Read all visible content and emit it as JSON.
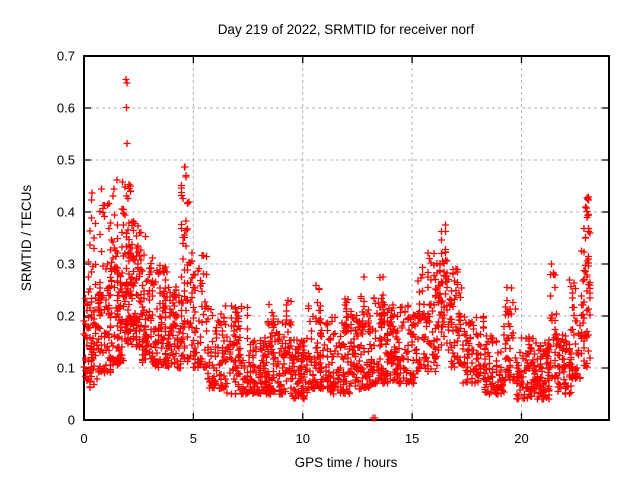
{
  "chart_data": {
    "type": "scatter",
    "title": "Day 219 of 2022, SRMTID for receiver norf",
    "xlabel": "GPS time / hours",
    "ylabel": "SRMTID / TECUs",
    "xlim": [
      0,
      24
    ],
    "ylim": [
      0,
      0.7
    ],
    "xticks": [
      0,
      5,
      10,
      15,
      20
    ],
    "xtick_labels": [
      "0",
      "5",
      "10",
      "15",
      "20"
    ],
    "yticks": [
      0,
      0.1,
      0.2,
      0.3,
      0.4,
      0.5,
      0.6,
      0.7
    ],
    "ytick_labels": [
      "0",
      "0.1",
      "0.2",
      "0.3",
      "0.4",
      "0.5",
      "0.6",
      "0.7"
    ],
    "grid": true,
    "legend": "none",
    "marker": {
      "style": "plus",
      "size": 7
    },
    "series_name": "SRMTID",
    "data_extent_hours": [
      0,
      23.15
    ],
    "notable_points": [
      [
        1.93,
        0.655
      ],
      [
        1.96,
        0.648
      ],
      [
        1.95,
        0.601
      ],
      [
        1.97,
        0.532
      ],
      [
        0.37,
        0.437
      ],
      [
        1.38,
        0.444
      ],
      [
        1.5,
        0.462
      ],
      [
        1.75,
        0.458
      ],
      [
        4.62,
        0.487
      ],
      [
        4.66,
        0.47
      ],
      [
        13.22,
        0.004
      ],
      [
        13.3,
        0.004
      ],
      [
        21.37,
        0.3
      ],
      [
        23.02,
        0.425
      ],
      [
        22.98,
        0.408
      ],
      [
        23.05,
        0.393
      ]
    ],
    "density_bands": [
      {
        "x0": 0.0,
        "x1": 0.6,
        "yLo": 0.06,
        "yHi": 0.23,
        "n": 70,
        "expo": 1.1
      },
      {
        "x0": 0.05,
        "x1": 0.6,
        "yLo": 0.23,
        "yHi": 0.33,
        "n": 12,
        "expo": 1.3
      },
      {
        "x0": 0.25,
        "x1": 0.55,
        "yLo": 0.33,
        "yHi": 0.44,
        "n": 6,
        "expo": 1.0
      },
      {
        "x0": 0.6,
        "x1": 1.2,
        "yLo": 0.09,
        "yHi": 0.26,
        "n": 80,
        "expo": 1.3
      },
      {
        "x0": 0.6,
        "x1": 1.2,
        "yLo": 0.26,
        "yHi": 0.42,
        "n": 14,
        "expo": 1.3
      },
      {
        "x0": 0.8,
        "x1": 0.95,
        "yLo": 0.4,
        "yHi": 0.445,
        "n": 3,
        "expo": 1.0
      },
      {
        "x0": 1.2,
        "x1": 1.8,
        "yLo": 0.1,
        "yHi": 0.3,
        "n": 85,
        "expo": 1.2
      },
      {
        "x0": 1.2,
        "x1": 1.8,
        "yLo": 0.3,
        "yHi": 0.44,
        "n": 16,
        "expo": 1.3
      },
      {
        "x0": 1.8,
        "x1": 2.15,
        "yLo": 0.14,
        "yHi": 0.34,
        "n": 55,
        "expo": 1.0
      },
      {
        "x0": 1.8,
        "x1": 2.15,
        "yLo": 0.34,
        "yHi": 0.455,
        "n": 18,
        "expo": 1.1
      },
      {
        "x0": 2.15,
        "x1": 2.6,
        "yLo": 0.14,
        "yHi": 0.32,
        "n": 60,
        "expo": 1.1
      },
      {
        "x0": 2.15,
        "x1": 2.6,
        "yLo": 0.32,
        "yHi": 0.385,
        "n": 14,
        "expo": 1.0
      },
      {
        "x0": 2.6,
        "x1": 3.2,
        "yLo": 0.11,
        "yHi": 0.3,
        "n": 75,
        "expo": 1.4
      },
      {
        "x0": 2.6,
        "x1": 3.2,
        "yLo": 0.3,
        "yHi": 0.36,
        "n": 6,
        "expo": 1.2
      },
      {
        "x0": 3.2,
        "x1": 3.8,
        "yLo": 0.1,
        "yHi": 0.3,
        "n": 75,
        "expo": 1.3
      },
      {
        "x0": 3.8,
        "x1": 4.4,
        "yLo": 0.1,
        "yHi": 0.26,
        "n": 70,
        "expo": 1.5
      },
      {
        "x0": 4.4,
        "x1": 5.1,
        "yLo": 0.11,
        "yHi": 0.33,
        "n": 65,
        "expo": 1.2
      },
      {
        "x0": 4.45,
        "x1": 4.8,
        "yLo": 0.33,
        "yHi": 0.49,
        "n": 20,
        "expo": 1.2
      },
      {
        "x0": 5.0,
        "x1": 5.6,
        "yLo": 0.1,
        "yHi": 0.35,
        "n": 45,
        "expo": 1.7
      },
      {
        "x0": 5.6,
        "x1": 6.5,
        "yLo": 0.06,
        "yHi": 0.22,
        "n": 85,
        "expo": 1.5
      },
      {
        "x0": 6.5,
        "x1": 7.5,
        "yLo": 0.05,
        "yHi": 0.22,
        "n": 90,
        "expo": 1.6
      },
      {
        "x0": 6.9,
        "x1": 7.15,
        "yLo": 0.18,
        "yHi": 0.27,
        "n": 8,
        "expo": 1.2
      },
      {
        "x0": 7.5,
        "x1": 8.5,
        "yLo": 0.05,
        "yHi": 0.16,
        "n": 100,
        "expo": 1.4
      },
      {
        "x0": 8.35,
        "x1": 8.65,
        "yLo": 0.13,
        "yHi": 0.26,
        "n": 12,
        "expo": 1.4
      },
      {
        "x0": 8.5,
        "x1": 9.5,
        "yLo": 0.05,
        "yHi": 0.2,
        "n": 95,
        "expo": 1.5
      },
      {
        "x0": 9.2,
        "x1": 9.5,
        "yLo": 0.15,
        "yHi": 0.235,
        "n": 8,
        "expo": 1.2
      },
      {
        "x0": 9.5,
        "x1": 10.2,
        "yLo": 0.04,
        "yHi": 0.16,
        "n": 80,
        "expo": 1.4
      },
      {
        "x0": 10.2,
        "x1": 11.2,
        "yLo": 0.06,
        "yHi": 0.22,
        "n": 100,
        "expo": 1.6
      },
      {
        "x0": 10.5,
        "x1": 10.9,
        "yLo": 0.17,
        "yHi": 0.265,
        "n": 10,
        "expo": 1.3
      },
      {
        "x0": 11.2,
        "x1": 12.2,
        "yLo": 0.05,
        "yHi": 0.2,
        "n": 100,
        "expo": 1.5
      },
      {
        "x0": 11.9,
        "x1": 12.2,
        "yLo": 0.16,
        "yHi": 0.28,
        "n": 10,
        "expo": 1.3
      },
      {
        "x0": 12.2,
        "x1": 13.2,
        "yLo": 0.06,
        "yHi": 0.22,
        "n": 100,
        "expo": 1.5
      },
      {
        "x0": 12.5,
        "x1": 12.8,
        "yLo": 0.17,
        "yHi": 0.285,
        "n": 9,
        "expo": 1.3
      },
      {
        "x0": 13.2,
        "x1": 14.2,
        "yLo": 0.07,
        "yHi": 0.24,
        "n": 100,
        "expo": 1.5
      },
      {
        "x0": 13.5,
        "x1": 13.78,
        "yLo": 0.18,
        "yHi": 0.28,
        "n": 8,
        "expo": 1.2
      },
      {
        "x0": 13.95,
        "x1": 14.18,
        "yLo": 0.17,
        "yHi": 0.26,
        "n": 7,
        "expo": 1.2
      },
      {
        "x0": 14.2,
        "x1": 15.2,
        "yLo": 0.07,
        "yHi": 0.22,
        "n": 95,
        "expo": 1.5
      },
      {
        "x0": 15.2,
        "x1": 16.2,
        "yLo": 0.09,
        "yHi": 0.28,
        "n": 90,
        "expo": 1.3
      },
      {
        "x0": 15.4,
        "x1": 16.2,
        "yLo": 0.28,
        "yHi": 0.325,
        "n": 10,
        "expo": 1.2
      },
      {
        "x0": 16.2,
        "x1": 16.7,
        "yLo": 0.13,
        "yHi": 0.3,
        "n": 45,
        "expo": 1.0
      },
      {
        "x0": 16.3,
        "x1": 16.6,
        "yLo": 0.3,
        "yHi": 0.375,
        "n": 14,
        "expo": 1.2
      },
      {
        "x0": 16.7,
        "x1": 17.3,
        "yLo": 0.1,
        "yHi": 0.28,
        "n": 55,
        "expo": 1.3
      },
      {
        "x0": 16.8,
        "x1": 17.15,
        "yLo": 0.28,
        "yHi": 0.315,
        "n": 6,
        "expo": 1.2
      },
      {
        "x0": 17.3,
        "x1": 18.3,
        "yLo": 0.07,
        "yHi": 0.2,
        "n": 85,
        "expo": 1.5
      },
      {
        "x0": 18.3,
        "x1": 19.2,
        "yLo": 0.05,
        "yHi": 0.17,
        "n": 80,
        "expo": 1.4
      },
      {
        "x0": 19.2,
        "x1": 19.8,
        "yLo": 0.07,
        "yHi": 0.22,
        "n": 45,
        "expo": 1.4
      },
      {
        "x0": 19.3,
        "x1": 19.6,
        "yLo": 0.2,
        "yHi": 0.27,
        "n": 9,
        "expo": 1.2
      },
      {
        "x0": 19.8,
        "x1": 20.7,
        "yLo": 0.04,
        "yHi": 0.16,
        "n": 90,
        "expo": 1.4
      },
      {
        "x0": 20.7,
        "x1": 21.3,
        "yLo": 0.04,
        "yHi": 0.15,
        "n": 65,
        "expo": 1.3
      },
      {
        "x0": 21.2,
        "x1": 21.6,
        "yLo": 0.08,
        "yHi": 0.25,
        "n": 30,
        "expo": 1.6
      },
      {
        "x0": 21.3,
        "x1": 21.55,
        "yLo": 0.24,
        "yHi": 0.295,
        "n": 5,
        "expo": 1.0
      },
      {
        "x0": 21.6,
        "x1": 22.3,
        "yLo": 0.05,
        "yHi": 0.17,
        "n": 65,
        "expo": 1.4
      },
      {
        "x0": 22.2,
        "x1": 22.7,
        "yLo": 0.08,
        "yHi": 0.28,
        "n": 45,
        "expo": 1.6
      },
      {
        "x0": 22.7,
        "x1": 23.15,
        "yLo": 0.1,
        "yHi": 0.33,
        "n": 50,
        "expo": 1.3
      },
      {
        "x0": 22.85,
        "x1": 23.12,
        "yLo": 0.3,
        "yHi": 0.43,
        "n": 16,
        "expo": 1.2
      }
    ],
    "seed": 219
  },
  "colors": {
    "marker": "#ff0000",
    "grid": "#b3b3b3",
    "axis": "#000000",
    "background": "#ffffff",
    "text": "#000000"
  }
}
